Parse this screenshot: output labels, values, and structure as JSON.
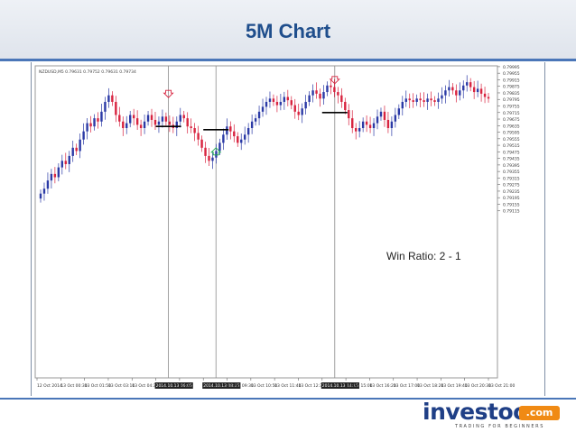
{
  "slide": {
    "title": "5M Chart",
    "annotation": "Win Ratio: 2 - 1"
  },
  "logo": {
    "word": "investoo",
    "suffix": ".com",
    "tagline": "TRADING FOR BEGINNERS"
  },
  "colors": {
    "bull": "#2b3aa6",
    "bear": "#d8233f",
    "grid": "#c8c8c8",
    "entry_marker": "#000000"
  },
  "chart_data": {
    "type": "candlestick",
    "symbol_label": "NZDUSD,M5  0.79631  0.79752  0.79631  0.79734",
    "ylim": [
      0.78095,
      0.8
    ],
    "y_ticks": [
      "0.79995",
      "0.79955",
      "0.79915",
      "0.79875",
      "0.79835",
      "0.79795",
      "0.79755",
      "0.79715",
      "0.79675",
      "0.79635",
      "0.79595",
      "0.79555",
      "0.79515",
      "0.79475",
      "0.79435",
      "0.79395",
      "0.79355",
      "0.79315",
      "0.79275",
      "0.79235",
      "0.79195",
      "0.79155",
      "0.79115"
    ],
    "x_ticks": [
      "12 Oct 2014",
      "13 Oct 00:30",
      "13 Oct 01:50",
      "13 Oct 03:10",
      "13 Oct 04:30",
      "2014.10.13 06:05",
      "13 Oct",
      "2014.10.13 08:25",
      "13 Oct 09:30",
      "13 Oct 10:50",
      "13 Oct 11:40",
      "13 Oct 12:30",
      "2014.10.13 14:15",
      "13 Oct 15:00",
      "13 Oct 16:20",
      "13 Oct 17:00",
      "13 Oct 18:20",
      "13 Oct 19:40",
      "13 Oct 20:30",
      "13 Oct 21:00"
    ],
    "highlighted_x_labels": [
      "2014.10.13 06:05",
      "2014.10.13 08:25",
      "2014.10.13 14:15"
    ],
    "close_path": [
      0.7922,
      0.7925,
      0.793,
      0.7934,
      0.7932,
      0.7938,
      0.7942,
      0.794,
      0.7945,
      0.795,
      0.7948,
      0.7955,
      0.796,
      0.7965,
      0.7963,
      0.7968,
      0.7966,
      0.7972,
      0.7978,
      0.7982,
      0.7978,
      0.797,
      0.7966,
      0.7962,
      0.7965,
      0.797,
      0.7968,
      0.7964,
      0.7962,
      0.7966,
      0.797,
      0.7967,
      0.7964,
      0.7966,
      0.7969,
      0.7966,
      0.7964,
      0.7962,
      0.7966,
      0.797,
      0.7968,
      0.7963,
      0.7962,
      0.7959,
      0.7955,
      0.795,
      0.7945,
      0.7942,
      0.7944,
      0.7948,
      0.7953,
      0.7958,
      0.7963,
      0.796,
      0.7957,
      0.7953,
      0.7955,
      0.7958,
      0.7962,
      0.7966,
      0.7968,
      0.7972,
      0.7975,
      0.7978,
      0.798,
      0.7978,
      0.7976,
      0.7978,
      0.7981,
      0.7979,
      0.7976,
      0.7972,
      0.797,
      0.7974,
      0.7978,
      0.7982,
      0.7985,
      0.7983,
      0.798,
      0.7984,
      0.7988,
      0.7987,
      0.7984,
      0.7982,
      0.7978,
      0.7973,
      0.7968,
      0.7962,
      0.796,
      0.7962,
      0.7966,
      0.7964,
      0.7962,
      0.7965,
      0.7969,
      0.7972,
      0.7967,
      0.7962,
      0.7966,
      0.797,
      0.7974,
      0.7978,
      0.798,
      0.7979,
      0.7978,
      0.798,
      0.7979,
      0.7978,
      0.798,
      0.7979,
      0.7978,
      0.798,
      0.7982,
      0.7985,
      0.7987,
      0.7985,
      0.7982,
      0.7985,
      0.7988,
      0.799,
      0.7987,
      0.7984,
      0.7986,
      0.7983,
      0.7981,
      0.798
    ],
    "vertical_markers": [
      "2014.10.13 06:05",
      "2014.10.13 08:25",
      "2014.10.13 14:15"
    ],
    "entry_levels": [
      0.7963,
      0.7961,
      0.79715
    ],
    "arrow_signals": [
      {
        "type": "sell",
        "color": "#d8233f"
      },
      {
        "type": "buy",
        "color": "#19a84a"
      },
      {
        "type": "sell",
        "color": "#d8233f"
      }
    ]
  }
}
